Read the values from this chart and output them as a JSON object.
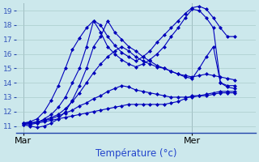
{
  "title": "",
  "xlabel": "Température (°c)",
  "ylabel": "",
  "bg_color": "#cce8ec",
  "grid_color": "#aacccc",
  "line_color": "#0000bb",
  "xtick_labels": [
    "Mar",
    "Mer"
  ],
  "ylim": [
    10.5,
    19.5
  ],
  "xlim": [
    -1,
    33
  ],
  "yticks": [
    11,
    12,
    13,
    14,
    15,
    16,
    17,
    18,
    19
  ],
  "mar_x": 0,
  "mer_x": 24,
  "series": [
    {
      "x": [
        0,
        1,
        2,
        3,
        4,
        5,
        6,
        7,
        8,
        9,
        10,
        11,
        12,
        13,
        14,
        15,
        16,
        17,
        18,
        19,
        20,
        21,
        22,
        23,
        24,
        25,
        26,
        27,
        28,
        29,
        30
      ],
      "y": [
        11.2,
        11.3,
        11.5,
        12.0,
        12.8,
        13.8,
        15.0,
        16.3,
        17.1,
        17.8,
        18.3,
        18.0,
        17.2,
        16.6,
        16.1,
        15.8,
        15.5,
        15.8,
        16.2,
        16.8,
        17.3,
        17.8,
        18.3,
        18.8,
        19.2,
        19.3,
        19.1,
        18.5,
        17.8,
        17.2,
        17.2
      ]
    },
    {
      "x": [
        0,
        1,
        2,
        3,
        4,
        5,
        6,
        7,
        8,
        9,
        10,
        11,
        12,
        13,
        14,
        15,
        16,
        17,
        18,
        19,
        20,
        21,
        22,
        23,
        24,
        25,
        26,
        27,
        28,
        29,
        30
      ],
      "y": [
        11.1,
        11.1,
        11.2,
        11.5,
        11.8,
        12.3,
        13.0,
        14.0,
        15.0,
        16.5,
        18.3,
        17.5,
        16.5,
        16.0,
        15.6,
        15.3,
        15.1,
        15.3,
        15.6,
        16.0,
        16.5,
        17.2,
        17.8,
        18.5,
        19.1,
        19.0,
        18.5,
        17.8,
        14.0,
        13.8,
        13.8
      ]
    },
    {
      "x": [
        0,
        1,
        2,
        3,
        4,
        5,
        6,
        7,
        8,
        9,
        10,
        11,
        12,
        13,
        14,
        15,
        16,
        17,
        18,
        19,
        20,
        21,
        22,
        23,
        24,
        25,
        26,
        27,
        28,
        29,
        30
      ],
      "y": [
        11.1,
        11.0,
        10.9,
        11.0,
        11.2,
        11.5,
        12.0,
        12.8,
        13.8,
        15.0,
        16.5,
        17.2,
        18.3,
        17.5,
        17.0,
        16.5,
        16.2,
        15.8,
        15.5,
        15.2,
        15.0,
        14.8,
        14.6,
        14.4,
        14.3,
        15.0,
        15.8,
        16.5,
        14.0,
        13.7,
        13.6
      ]
    },
    {
      "x": [
        0,
        1,
        2,
        3,
        4,
        5,
        6,
        7,
        8,
        9,
        10,
        11,
        12,
        13,
        14,
        15,
        16,
        17,
        18,
        19,
        20,
        21,
        22,
        23,
        24,
        25,
        26,
        27,
        28,
        29,
        30
      ],
      "y": [
        11.2,
        11.2,
        11.3,
        11.4,
        11.6,
        11.8,
        12.2,
        12.7,
        13.3,
        14.0,
        14.7,
        15.3,
        15.8,
        16.2,
        16.5,
        16.2,
        15.8,
        15.5,
        15.3,
        15.1,
        15.0,
        14.8,
        14.6,
        14.5,
        14.4,
        14.5,
        14.6,
        14.5,
        14.4,
        14.3,
        14.2
      ]
    },
    {
      "x": [
        0,
        1,
        2,
        3,
        4,
        5,
        6,
        7,
        8,
        9,
        10,
        11,
        12,
        13,
        14,
        15,
        16,
        17,
        18,
        19,
        20,
        21,
        22,
        23,
        24,
        25,
        26,
        27,
        28,
        29,
        30
      ],
      "y": [
        11.2,
        11.2,
        11.3,
        11.4,
        11.5,
        11.7,
        11.9,
        12.1,
        12.4,
        12.6,
        12.9,
        13.1,
        13.4,
        13.6,
        13.8,
        13.7,
        13.5,
        13.4,
        13.3,
        13.2,
        13.1,
        13.0,
        13.0,
        13.0,
        13.0,
        13.1,
        13.2,
        13.3,
        13.4,
        13.4,
        13.4
      ]
    },
    {
      "x": [
        0,
        1,
        2,
        3,
        4,
        5,
        6,
        7,
        8,
        9,
        10,
        11,
        12,
        13,
        14,
        15,
        16,
        17,
        18,
        19,
        20,
        21,
        22,
        23,
        24,
        25,
        26,
        27,
        28,
        29,
        30
      ],
      "y": [
        11.2,
        11.2,
        11.2,
        11.3,
        11.4,
        11.5,
        11.6,
        11.7,
        11.8,
        11.9,
        12.0,
        12.1,
        12.2,
        12.3,
        12.4,
        12.5,
        12.5,
        12.5,
        12.5,
        12.5,
        12.5,
        12.6,
        12.7,
        12.9,
        13.1,
        13.1,
        13.1,
        13.2,
        13.3,
        13.3,
        13.3
      ]
    }
  ]
}
